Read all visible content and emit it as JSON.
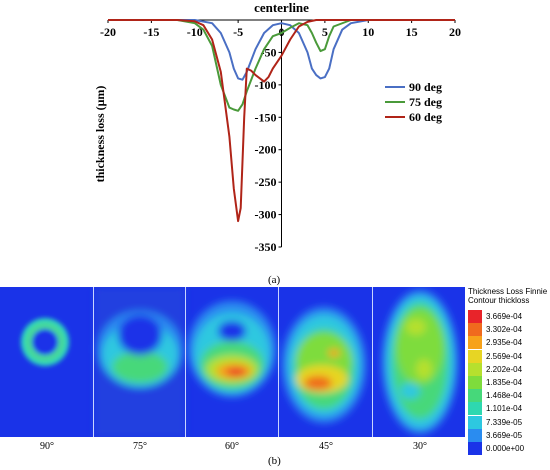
{
  "figure": {
    "panel_a_label": "(a)",
    "panel_b_label": "(b)"
  },
  "chart_data": {
    "type": "line",
    "title": "centerline",
    "xlabel": "",
    "ylabel": "thickness loss (μm)",
    "xlim": [
      -20,
      20
    ],
    "ylim": [
      -350,
      0
    ],
    "x_ticks": [
      -20,
      -15,
      -10,
      -5,
      0,
      5,
      10,
      15,
      20
    ],
    "y_ticks": [
      -50,
      -100,
      -150,
      -200,
      -250,
      -300,
      -350
    ],
    "legend_position": "right",
    "grid": false,
    "series": [
      {
        "name": "90 deg",
        "color": "#4a6fc4",
        "x": [
          -20,
          -10,
          -8,
          -7,
          -6,
          -5.5,
          -5,
          -4.5,
          -4,
          -3,
          -2,
          -1,
          0,
          1,
          2,
          3,
          3.5,
          4,
          4.5,
          5,
          5.5,
          6,
          7,
          8,
          10,
          15,
          20
        ],
        "y": [
          0,
          0,
          -5,
          -20,
          -50,
          -75,
          -90,
          -92,
          -80,
          -45,
          -20,
          -8,
          -5,
          -8,
          -20,
          -50,
          -75,
          -85,
          -90,
          -88,
          -75,
          -45,
          -15,
          -5,
          0,
          0,
          0
        ]
      },
      {
        "name": "75 deg",
        "color": "#4a9a3a",
        "x": [
          -20,
          -12,
          -10,
          -9,
          -8,
          -7,
          -6,
          -5.5,
          -5,
          -4.5,
          -4,
          -3,
          -2,
          -1,
          0,
          1,
          2,
          3,
          3.5,
          4,
          4.5,
          5,
          5.5,
          6,
          8,
          20
        ],
        "y": [
          0,
          0,
          -5,
          -15,
          -40,
          -100,
          -135,
          -138,
          -140,
          -130,
          -110,
          -75,
          -45,
          -25,
          -20,
          -12,
          -5,
          -8,
          -20,
          -35,
          -48,
          -45,
          -25,
          -10,
          0,
          0
        ]
      },
      {
        "name": "60 deg",
        "color": "#b02418",
        "x": [
          -20,
          -12,
          -10,
          -9,
          -8,
          -7,
          -6,
          -5.5,
          -5,
          -4.7,
          -4.3,
          -4,
          -3.5,
          -3,
          -2,
          -1.5,
          -1,
          0,
          1,
          2,
          3,
          4,
          5,
          6,
          8,
          10,
          20
        ],
        "y": [
          0,
          0,
          -2,
          -8,
          -30,
          -80,
          -180,
          -260,
          -310,
          -290,
          -150,
          -75,
          -78,
          -85,
          -95,
          -88,
          -75,
          -55,
          -30,
          -10,
          -3,
          0,
          0,
          0,
          0,
          0,
          0
        ]
      }
    ]
  },
  "contour_panel": {
    "legend_title": "Thickness Loss Finnie",
    "legend_subtitle": "Contour thickloss",
    "legend_levels": [
      {
        "value": "3.669e-04",
        "color": "#e8242a"
      },
      {
        "value": "3.302e-04",
        "color": "#f06a1e"
      },
      {
        "value": "2.935e-04",
        "color": "#f7a21a"
      },
      {
        "value": "2.569e-04",
        "color": "#e7d524"
      },
      {
        "value": "2.202e-04",
        "color": "#b6e02e"
      },
      {
        "value": "1.835e-04",
        "color": "#7edc3c"
      },
      {
        "value": "1.468e-04",
        "color": "#46d87a"
      },
      {
        "value": "1.101e-04",
        "color": "#2ed8b0"
      },
      {
        "value": "7.339e-05",
        "color": "#2dc8e0"
      },
      {
        "value": "3.669e-05",
        "color": "#2a8cf0"
      },
      {
        "value": "0.000e+00",
        "color": "#1a33e8"
      }
    ],
    "angles": [
      "90°",
      "75°",
      "60°",
      "45°",
      "30°"
    ]
  }
}
